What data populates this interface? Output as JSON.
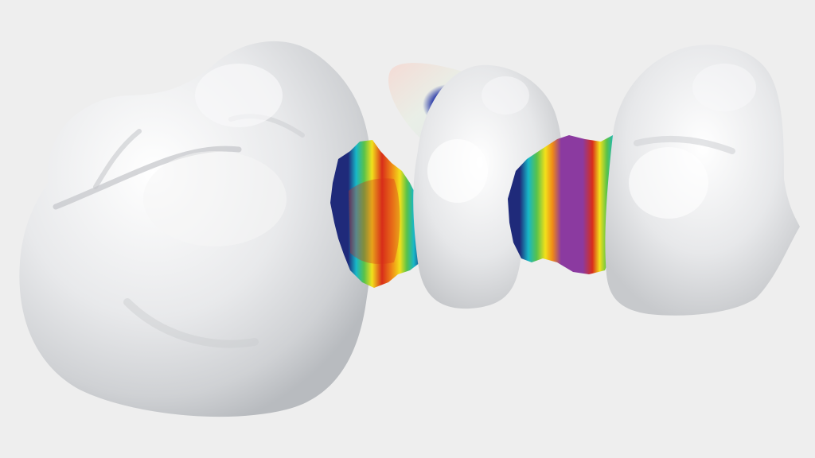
{
  "scene": {
    "background_color": "#eeeeee",
    "tooth_color": "#e6e7e9",
    "contact_map_colors": {
      "outer": "#1f2a7a",
      "cyan": "#17b7c8",
      "green": "#58c24a",
      "yellow": "#f2e11b",
      "orange": "#f08a16",
      "red": "#d82d1a",
      "center": "#8b3aa0"
    },
    "occlusal_marker_color": "#1c2a9c"
  }
}
